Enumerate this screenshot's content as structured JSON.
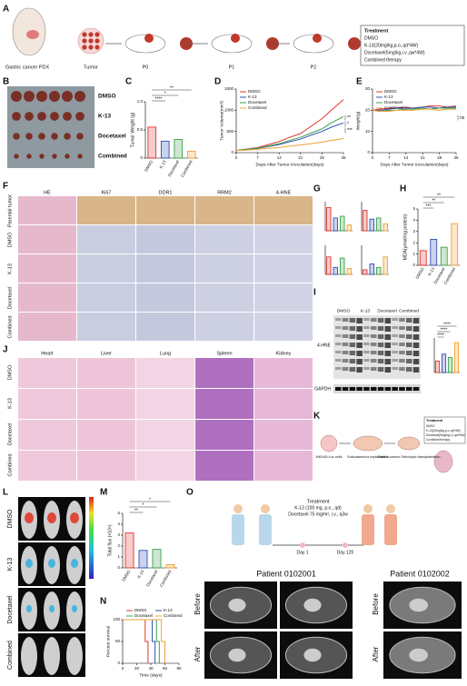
{
  "figure": {
    "group_colors": [
      "#e0342c",
      "#2f4fb5",
      "#3aa14a",
      "#f0a030"
    ],
    "panel_a": {
      "letter": "A",
      "labels": [
        "Gastric cancer PDX",
        "Tumor",
        "P0",
        "P1",
        "P2"
      ],
      "treatment_title": "Treatment",
      "treatments": [
        "DMSO",
        "K-13(20mg/kg,p.o.,qd*4W)",
        "Docetaxel(5mg/kg,i.v.,qw*4W)",
        "Combined therapy"
      ]
    },
    "panel_b": {
      "letter": "B",
      "groups": [
        "DMSO",
        "K-13",
        "Docetaxel",
        "Combined"
      ]
    },
    "panel_c": {
      "letter": "C",
      "type": "bar",
      "ylabel": "Tumor Weight (g)",
      "categories": [
        "DMSO",
        "K-13",
        "Docetaxel",
        "Combined"
      ],
      "values": [
        0.55,
        0.3,
        0.33,
        0.12
      ],
      "ylim": [
        0,
        1
      ],
      "yticks": [
        0,
        0.5,
        {
          "value": 1,
          "label": "1.0"
        }
      ],
      "significance": [
        "****",
        "*",
        "**"
      ]
    },
    "panel_d": {
      "letter": "D",
      "type": "line",
      "ylabel": "Tumor Volume(mm³)",
      "xlabel": "Days After Tumor Inoculation(days)",
      "x": [
        0,
        3,
        7,
        10,
        14,
        17,
        21,
        24,
        28,
        31,
        35
      ],
      "xlim": [
        0,
        35
      ],
      "xticks": [
        0,
        7,
        14,
        21,
        28,
        35
      ],
      "ylim": [
        0,
        1500
      ],
      "yticks": [
        0,
        500,
        1000,
        1500
      ],
      "series": [
        {
          "name": "DMSO",
          "values": [
            50,
            80,
            120,
            180,
            260,
            350,
            450,
            600,
            800,
            1000,
            1250
          ]
        },
        {
          "name": "K-13",
          "values": [
            50,
            70,
            100,
            140,
            190,
            250,
            320,
            400,
            500,
            600,
            700
          ]
        },
        {
          "name": "Docetaxel",
          "values": [
            50,
            75,
            110,
            150,
            210,
            280,
            360,
            450,
            560,
            700,
            850
          ]
        },
        {
          "name": "Combined",
          "values": [
            50,
            60,
            80,
            100,
            120,
            150,
            180,
            210,
            250,
            290,
            330
          ]
        }
      ],
      "significance": [
        "**",
        "*",
        "***"
      ]
    },
    "panel_e": {
      "letter": "E",
      "type": "line",
      "ylabel": "Weight(g)",
      "xlabel": "Days After Tumor Inoculation(days)",
      "x": [
        0,
        3,
        7,
        10,
        14,
        17,
        21,
        24,
        28,
        31,
        35
      ],
      "xlim": [
        0,
        35
      ],
      "xticks": [
        0,
        7,
        14,
        21,
        28,
        35
      ],
      "ylim": [
        0,
        30
      ],
      "yticks": [
        0,
        10,
        20,
        30
      ],
      "series": [
        {
          "name": "DMSO",
          "values": [
            20,
            20.5,
            21,
            21,
            21.5,
            21,
            21.5,
            22,
            22,
            21.5,
            22
          ]
        },
        {
          "name": "K-13",
          "values": [
            20,
            20,
            20.5,
            21,
            21,
            21,
            21.5,
            21.5,
            21,
            21.5,
            21.5
          ]
        },
        {
          "name": "Docetaxel",
          "values": [
            20,
            19.5,
            20,
            20,
            20.5,
            20.5,
            21,
            20.5,
            21,
            21,
            21
          ]
        },
        {
          "name": "Combined",
          "values": [
            20,
            19.5,
            19.5,
            20,
            20,
            20,
            20.5,
            20.5,
            20,
            20.5,
            20.5
          ]
        }
      ],
      "significance": [
        "ns"
      ]
    },
    "panel_f": {
      "letter": "F",
      "columns": [
        "HE",
        "Ki67",
        "DDR1",
        "RRM2",
        "4-HNE"
      ],
      "rows": [
        "Parental tumor",
        "DMSO",
        "K-13",
        "Docetaxel",
        "Combined"
      ]
    },
    "panel_g": {
      "letter": "G",
      "charts": [
        {
          "type": "bar",
          "values": [
            40,
            22,
            25,
            10
          ],
          "ylim": [
            0,
            50
          ]
        },
        {
          "type": "bar",
          "values": [
            35,
            20,
            22,
            12
          ],
          "ylim": [
            0,
            50
          ]
        },
        {
          "type": "bar",
          "values": [
            30,
            12,
            28,
            10
          ],
          "ylim": [
            0,
            50
          ]
        },
        {
          "type": "bar",
          "values": [
            8,
            18,
            12,
            30
          ],
          "ylim": [
            0,
            50
          ]
        }
      ]
    },
    "panel_h": {
      "letter": "H",
      "type": "bar",
      "ylabel": "MDA(μmol/mg protein)",
      "categories": [
        "DMSO",
        "K-13",
        "Docetaxel",
        "Combined"
      ],
      "values": [
        1.3,
        2.3,
        1.6,
        3.7
      ],
      "ylim": [
        0,
        5
      ],
      "yticks": [
        0,
        1,
        2,
        3,
        4,
        5
      ],
      "significance": [
        "***",
        "**",
        "**"
      ]
    },
    "panel_i": {
      "letter": "I",
      "groups": [
        "DMSO",
        "K-13",
        "Docetaxel",
        "Combined"
      ],
      "bands": [
        "4-HNE",
        "GAPDH"
      ],
      "chart": {
        "type": "bar",
        "values": [
          1,
          1.6,
          1.3,
          2.6
        ],
        "ylim": [
          0,
          3
        ],
        "significance": [
          "****",
          "****",
          "****"
        ]
      }
    },
    "panel_j": {
      "letter": "J",
      "columns": [
        "Heart",
        "Liver",
        "Lung",
        "Spleen",
        "Kidney"
      ],
      "rows": [
        "DMSO",
        "K-13",
        "Docetaxel",
        "Combined"
      ]
    },
    "panel_k": {
      "letter": "K",
      "steps": [
        "MKN45-Luc cells",
        "Subcutaneous implantation",
        "Gastric cancer Orthotopic transplantation"
      ],
      "treatment_title": "Treatment",
      "treatments": [
        "DMSO",
        "K-13(20mg/kg,p.o.,qd*4W)",
        "Docetaxel(5mg/kg,i.v.,qw*4W)",
        "Combined therapy"
      ]
    },
    "panel_l": {
      "letter": "L",
      "rows": [
        "DMSO",
        "K-13",
        "Docetaxel",
        "Combined"
      ]
    },
    "panel_m": {
      "letter": "M",
      "type": "bar",
      "ylabel": "Total flux (×10⁸)",
      "categories": [
        "DMSO",
        "K-13",
        "Docetaxel",
        "Combined"
      ],
      "values": [
        3.2,
        1.6,
        1.7,
        0.3
      ],
      "ylim": [
        0,
        5
      ],
      "yticks": [
        0,
        1,
        2,
        3,
        4,
        5
      ],
      "significance": [
        "**",
        "*",
        "*"
      ]
    },
    "panel_n": {
      "letter": "N",
      "type": "step",
      "ylabel": "Percent survival",
      "xlabel": "Time (days)",
      "xlim": [
        0,
        80
      ],
      "xticks": [
        0,
        20,
        40,
        60,
        80
      ],
      "ylim": [
        0,
        100
      ],
      "yticks": [
        0,
        50,
        100
      ],
      "series": [
        {
          "name": "DMSO",
          "x": [
            0,
            30,
            32,
            36
          ],
          "values": [
            100,
            100,
            50,
            0
          ]
        },
        {
          "name": "K-13",
          "x": [
            0,
            38,
            42,
            46
          ],
          "values": [
            100,
            100,
            50,
            0
          ]
        },
        {
          "name": "Docetaxel",
          "x": [
            0,
            44,
            48,
            52
          ],
          "values": [
            100,
            100,
            50,
            0
          ]
        },
        {
          "name": "Combined",
          "x": [
            0,
            50,
            55,
            60
          ],
          "values": [
            100,
            100,
            50,
            0
          ]
        }
      ]
    },
    "panel_o": {
      "letter": "O",
      "treatment_title": "Treatment",
      "treatments": [
        "K-13 (100 mg, p.o., qd)",
        "Docetaxel 75 mg/m², i.v., q3w"
      ],
      "days": [
        "Day 1",
        "Day 120"
      ],
      "patients": [
        {
          "name": "Patient 0102001",
          "rows": [
            "Before",
            "After"
          ]
        },
        {
          "name": "Patient 0102002",
          "rows": [
            "Before",
            "After"
          ]
        }
      ]
    }
  }
}
